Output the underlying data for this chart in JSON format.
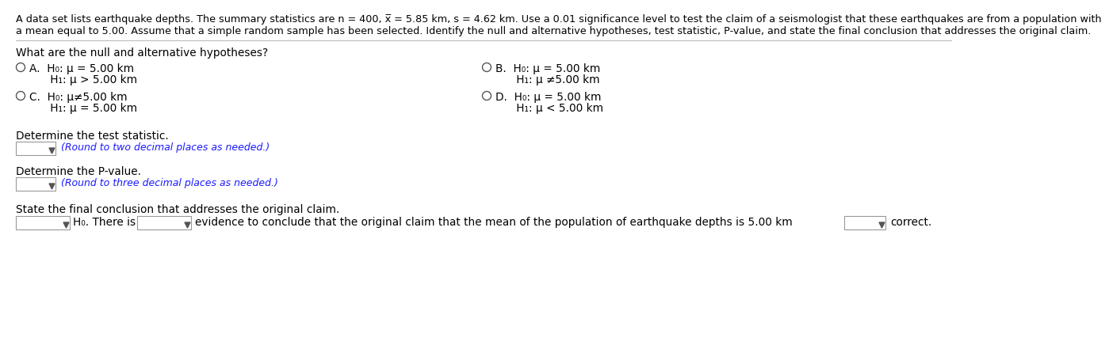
{
  "background_color": "#ffffff",
  "header_line1": "A data set lists earthquake depths. The summary statistics are n = 400, x̅ = 5.85 km, s = 4.62 km. Use a 0.01 significance level to test the claim of a seismologist that these earthquakes are from a population with",
  "header_line2": "a mean equal to 5.00. Assume that a simple random sample has been selected. Identify the null and alternative hypotheses, test statistic, P-value, and state the final conclusion that addresses the original claim.",
  "question1": "What are the null and alternative hypotheses?",
  "optA1": "A.  H₀: μ = 5.00 km",
  "optA2": "      H₁: μ > 5.00 km",
  "optB1": "B.  H₀: μ = 5.00 km",
  "optB2": "      H₁: μ ≠5.00 km",
  "optC1": "C.  H₀: μ≠5.00 km",
  "optC2": "      H₁: μ = 5.00 km",
  "optD1": "D.  H₀: μ = 5.00 km",
  "optD2": "      H₁: μ < 5.00 km",
  "question2": "Determine the test statistic.",
  "hint2": "(Round to two decimal places as needed.)",
  "question3": "Determine the P-value.",
  "hint3": "(Round to three decimal places as needed.)",
  "question4": "State the final conclusion that addresses the original claim.",
  "conclusion_mid": "evidence to conclude that the original claim that the mean of the population of earthquake depths is 5.00 km",
  "conclusion_end": "correct.",
  "h0_label": "H₀. There is",
  "text_color": "#000000",
  "hint_color": "#1a1aff",
  "line_color": "#bbbbbb",
  "header_fontsize": 9.2,
  "body_fontsize": 9.8,
  "option_fontsize": 9.8,
  "hint_fontsize": 9.0
}
